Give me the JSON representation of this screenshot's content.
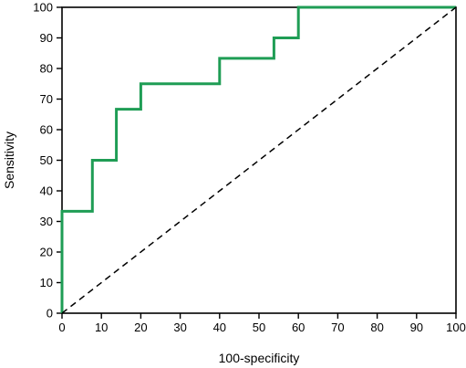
{
  "chart_data": {
    "type": "line",
    "xlabel": "100-specificity",
    "ylabel": "Sensitivity",
    "xlim": [
      0,
      100
    ],
    "ylim": [
      0,
      100
    ],
    "xticks": [
      0,
      10,
      20,
      30,
      40,
      50,
      60,
      70,
      80,
      90,
      100
    ],
    "yticks": [
      0,
      10,
      20,
      30,
      40,
      50,
      60,
      70,
      80,
      90,
      100
    ],
    "grid": false,
    "series": [
      {
        "style": "solid",
        "color": "#1f9d55",
        "x": [
          0,
          0,
          7.7,
          7.7,
          13.8,
          13.8,
          20,
          20,
          40,
          40,
          53.8,
          53.8,
          60,
          60,
          100
        ],
        "y": [
          0,
          33.3,
          33.3,
          50,
          50,
          66.7,
          66.7,
          75,
          75,
          83.3,
          83.3,
          90,
          90,
          100,
          100
        ]
      },
      {
        "style": "dashed",
        "color": "#000000",
        "x": [
          0,
          100
        ],
        "y": [
          0,
          100
        ]
      }
    ]
  }
}
